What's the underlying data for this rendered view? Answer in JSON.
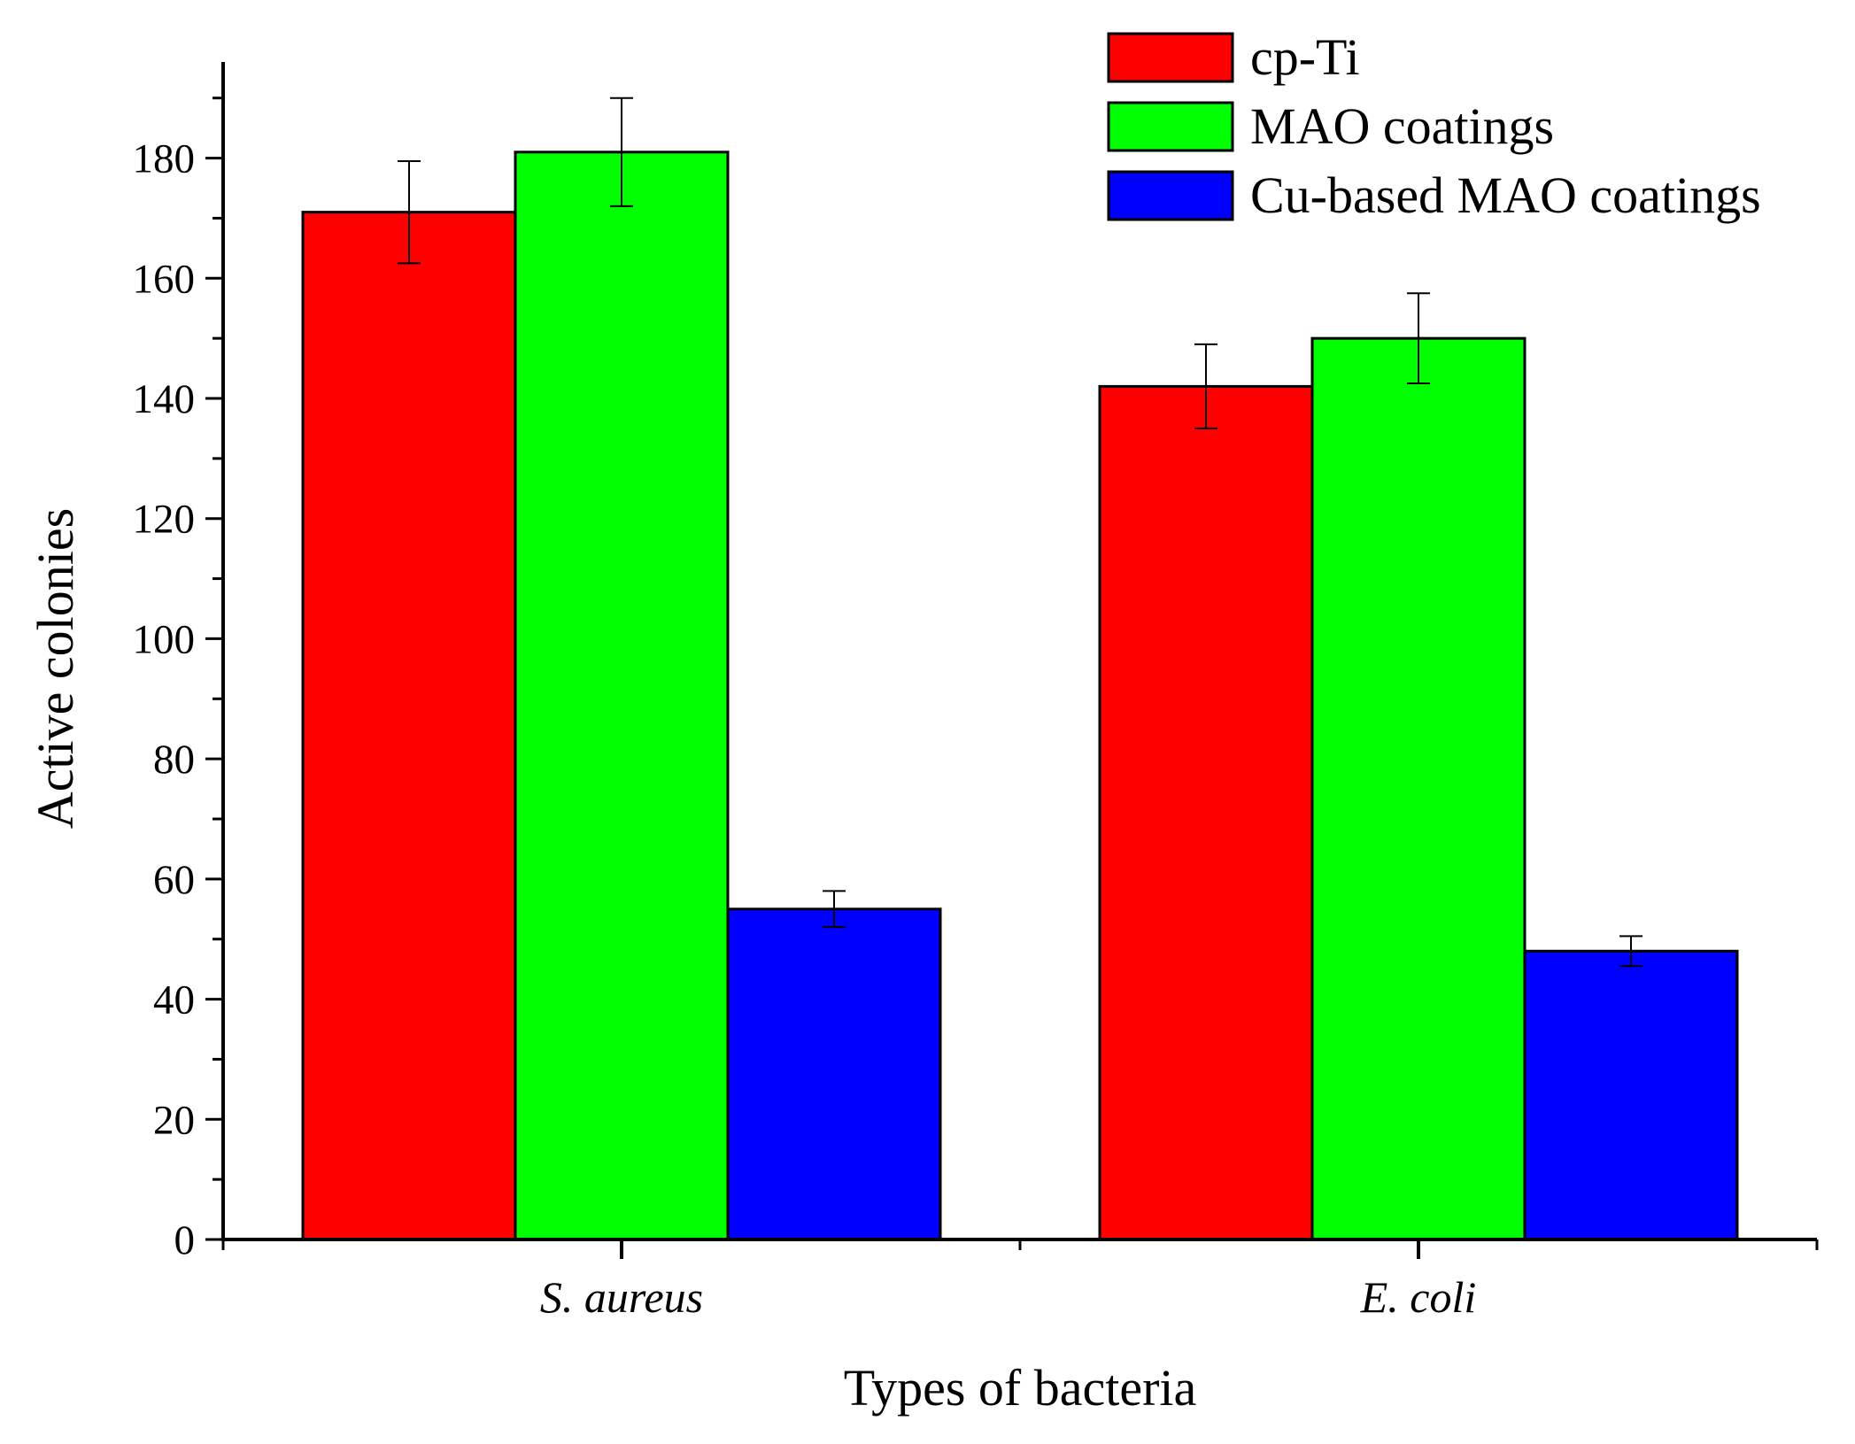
{
  "chart_data": {
    "type": "bar",
    "title": "",
    "xlabel": "Types of bacteria",
    "ylabel": "Active colonies",
    "categories": [
      "S. aureus",
      "E. coli"
    ],
    "ylim": [
      0,
      196
    ],
    "yticks": [
      0,
      20,
      40,
      60,
      80,
      100,
      120,
      140,
      160,
      180
    ],
    "ytick_labels": [
      "0",
      "20",
      "40",
      "60",
      "80",
      "100",
      "120",
      "140",
      "160",
      "180"
    ],
    "grid": false,
    "legend_position": "top-right",
    "series": [
      {
        "name": "cp-Ti",
        "color": "#ff0000",
        "values": [
          171,
          142
        ],
        "errors": [
          8.5,
          7
        ]
      },
      {
        "name": "MAO coatings",
        "color": "#00ff00",
        "values": [
          181,
          150
        ],
        "errors": [
          9,
          7.5
        ]
      },
      {
        "name": "Cu-based MAO coatings",
        "color": "#0000ff",
        "values": [
          55,
          48
        ],
        "errors": [
          3,
          2.5
        ]
      }
    ]
  }
}
